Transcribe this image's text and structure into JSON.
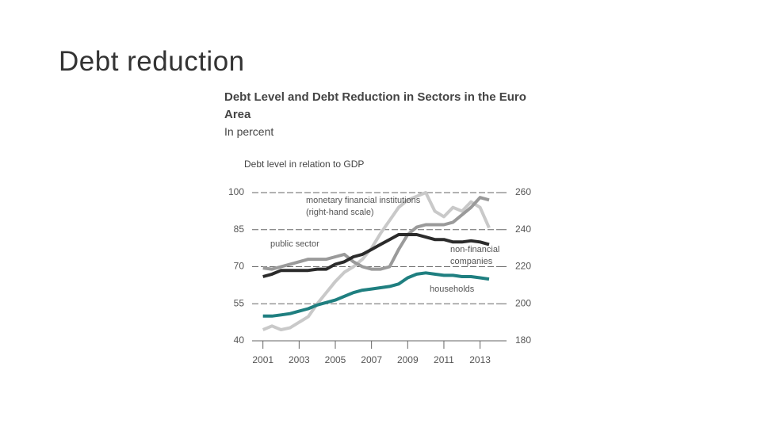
{
  "slide_title": "Debt reduction",
  "chart_data": {
    "type": "line",
    "title": "Debt Level and Debt Reduction in Sectors in the Euro Area",
    "subtitle": "In percent",
    "y_label": "Debt level in relation to GDP",
    "x": [
      2001,
      2001.5,
      2002,
      2002.5,
      2003,
      2003.5,
      2004,
      2004.5,
      2005,
      2005.5,
      2006,
      2006.5,
      2007,
      2007.5,
      2008,
      2008.5,
      2009,
      2009.5,
      2010,
      2010.5,
      2011,
      2011.5,
      2012,
      2012.5,
      2013,
      2013.5
    ],
    "xlim": [
      2000.4,
      2014.2
    ],
    "xticks": [
      2001,
      2003,
      2005,
      2007,
      2009,
      2011,
      2013
    ],
    "ylim": [
      40,
      100
    ],
    "yticks": [
      40,
      55,
      70,
      85,
      100
    ],
    "y2lim": [
      180,
      260
    ],
    "y2ticks": [
      180,
      200,
      220,
      240,
      260
    ],
    "grid": true,
    "series": [
      {
        "name": "monetary financial institutions (right-hand scale)",
        "color": "#c9c9c9",
        "axis": "y2",
        "values": [
          186,
          188,
          186,
          187,
          190,
          193,
          200,
          206,
          212,
          217,
          220,
          224,
          230,
          238,
          245,
          252,
          256,
          258,
          260,
          250,
          247,
          252,
          250,
          255,
          252,
          241
        ]
      },
      {
        "name": "public sector",
        "color": "#9a9a9a",
        "values": [
          69.5,
          69,
          70,
          71,
          72,
          73,
          73,
          73,
          74,
          75,
          72,
          70,
          69,
          69,
          70,
          77,
          83,
          86,
          87,
          87,
          87,
          88,
          91,
          94,
          98,
          97
        ]
      },
      {
        "name": "households",
        "color": "#1f7f80",
        "values": [
          50,
          50,
          50.5,
          51,
          52,
          53,
          54.5,
          55.5,
          56.5,
          58,
          59.5,
          60.5,
          61,
          61.5,
          62,
          63,
          65.5,
          67,
          67.5,
          67,
          66.5,
          66.5,
          66,
          66,
          65.5,
          65
        ]
      },
      {
        "name": "non-financial companies",
        "color": "#2b2b2b",
        "values": [
          66,
          67,
          68.5,
          68.5,
          68.5,
          68.5,
          69,
          69,
          71,
          72,
          74,
          75,
          77,
          79,
          81,
          83,
          83,
          83,
          82,
          81,
          81,
          80,
          80,
          80.5,
          80,
          79
        ]
      }
    ]
  }
}
